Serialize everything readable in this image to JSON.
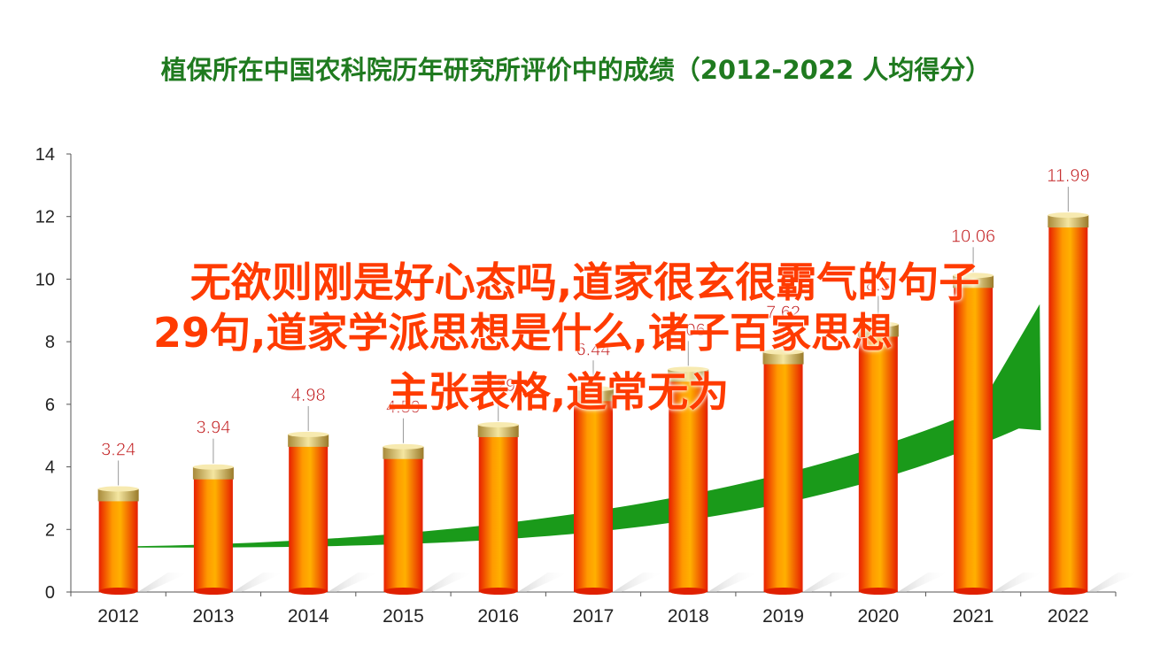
{
  "chart_data": {
    "type": "bar",
    "title": "植保所在中国农科院历年研究所评价中的成绩（2012-2022  人均得分）",
    "categories": [
      "2012",
      "2013",
      "2014",
      "2015",
      "2016",
      "2017",
      "2018",
      "2019",
      "2020",
      "2021",
      "2022"
    ],
    "values": [
      3.24,
      3.94,
      4.98,
      4.59,
      5.29,
      6.44,
      7.06,
      7.62,
      8.5,
      10.06,
      11.99
    ],
    "value_labels": [
      "3.24",
      "3.94",
      "4.98",
      "4.59",
      "5.29",
      "6.44",
      "7.06",
      "7.62",
      "8.5",
      "10.06",
      "11.99"
    ],
    "ylim": [
      0,
      14
    ],
    "yticks": [
      "0",
      "2",
      "4",
      "6",
      "8",
      "10",
      "12",
      "14"
    ],
    "xlabel": "",
    "ylabel": "",
    "bar_color": "#ff5a00",
    "label_color": "#c0181a",
    "trend_color": "#1a9a1a"
  },
  "overlay_text": {
    "line1": "无欲则刚是好心态吗,道家很玄很霸气的句子",
    "line2": "29句,道家学派思想是什么,诸子百家思想",
    "line3": "主张表格,道常无为"
  }
}
